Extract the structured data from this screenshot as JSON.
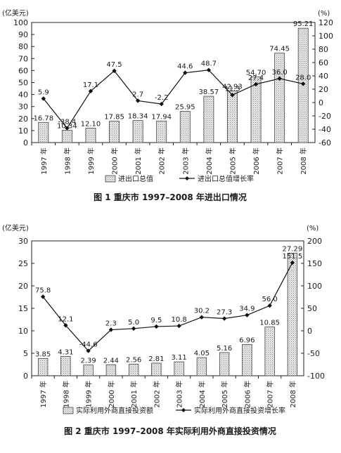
{
  "chart_data": [
    {
      "type": "bar",
      "title": "图 1   重庆市 1997–2008 年进出口情况",
      "ylabel_left": "(亿美元)",
      "ylabel_right": "(%)",
      "categories": [
        "1997 年",
        "1998 年",
        "1999 年",
        "2000 年",
        "2001 年",
        "2002 年",
        "2003 年",
        "2004 年",
        "2005 年",
        "2006 年",
        "2007 年",
        "2008 年"
      ],
      "ylim_left": [
        0,
        100
      ],
      "yticks_left": [
        "0",
        "10",
        "20",
        "30",
        "40",
        "50",
        "60",
        "70",
        "80",
        "90",
        "100"
      ],
      "ylim_right": [
        -60,
        120
      ],
      "yticks_right": [
        "-60",
        "-40",
        "-20",
        "0",
        "20",
        "40",
        "60",
        "80",
        "100",
        "120"
      ],
      "bar_series": {
        "name": "进出口总值",
        "values": [
          16.78,
          10.34,
          12.1,
          17.85,
          18.34,
          17.94,
          25.95,
          38.57,
          42.93,
          54.7,
          74.45,
          95.21
        ],
        "labels": [
          "16.78",
          "10.34",
          "12.10",
          "17.85",
          "18.34",
          "17.94",
          "25.95",
          "38.57",
          "42.93",
          "54.70",
          "74.45",
          "95.21"
        ]
      },
      "line_series": {
        "name": "进出口总值增长率",
        "values": [
          5.9,
          -38.4,
          17.1,
          47.5,
          2.7,
          -2.2,
          44.6,
          48.7,
          11.3,
          27.4,
          36.0,
          28.0
        ],
        "labels": [
          "5.9",
          "-38.4",
          "17.1",
          "47.5",
          "2.7",
          "-2.2",
          "44.6",
          "48.7",
          "11.3",
          "27.4",
          "36.0",
          "28.0"
        ]
      },
      "legend": "bottom"
    },
    {
      "type": "bar",
      "title": "图 2   重庆市 1997–2008 年实际利用外商直接投资情况",
      "ylabel_left": "(亿美元)",
      "ylabel_right": "(%)",
      "categories": [
        "1997 年",
        "1998 年",
        "1999 年",
        "2000 年",
        "2001 年",
        "2002 年",
        "2003 年",
        "2004 年",
        "2005 年",
        "2006 年",
        "2007 年",
        "2008 年"
      ],
      "ylim_left": [
        0,
        30
      ],
      "yticks_left": [
        "0",
        "5",
        "10",
        "15",
        "20",
        "25",
        "30"
      ],
      "ylim_right": [
        -100,
        200
      ],
      "yticks_right": [
        "-100",
        "-50",
        "0",
        "50",
        "100",
        "150",
        "200"
      ],
      "bar_series": {
        "name": "实际利用外商直接投资额",
        "values": [
          3.85,
          4.31,
          2.39,
          2.44,
          2.56,
          2.81,
          3.11,
          4.05,
          5.16,
          6.96,
          10.85,
          27.29
        ],
        "labels": [
          "3.85",
          "4.31",
          "2.39",
          "2.44",
          "2.56",
          "2.81",
          "3.11",
          "4.05",
          "5.16",
          "6.96",
          "10.85",
          "27.29"
        ]
      },
      "line_series": {
        "name": "实际利用外商直接投资增长率",
        "values": [
          75.8,
          12.1,
          -44.6,
          2.3,
          5.0,
          9.5,
          10.8,
          30.2,
          27.3,
          34.9,
          56.0,
          151.5
        ],
        "labels": [
          "75.8",
          "12.1",
          "-44.6",
          "2.3",
          "5.0",
          "9.5",
          "10.8",
          "30.2",
          "27.3",
          "34.9",
          "56.0",
          "151.5"
        ]
      },
      "legend": "bottom"
    }
  ]
}
